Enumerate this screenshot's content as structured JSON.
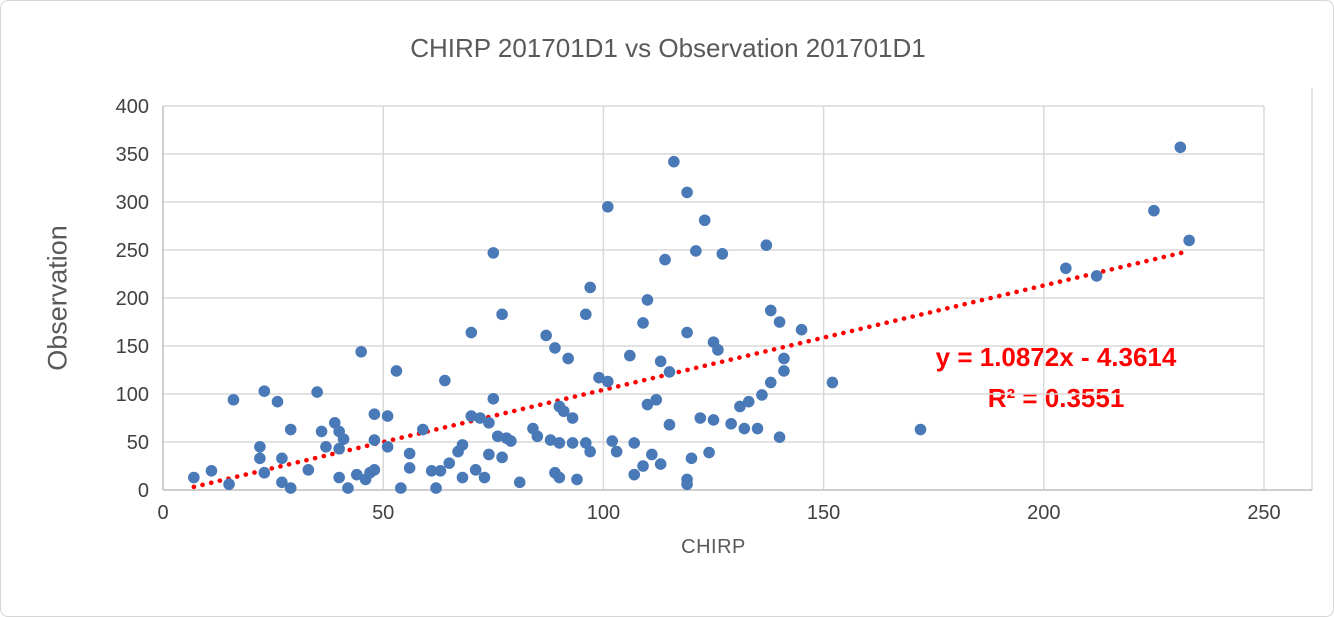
{
  "chart": {
    "title": "CHIRP 201701D1 vs Observation 201701D1",
    "x_axis_label": "CHIRP",
    "y_axis_label": "Observation",
    "equation_line1": "y = 1.0872x - 4.3614",
    "equation_line2": "R² = 0.3551"
  },
  "colors": {
    "marker": "#4979b7",
    "trendline": "#ff0000",
    "equation_text": "#ff0000",
    "gridline": "#d9d9d9",
    "axis_line": "#bfbfbf",
    "title_text": "#595959",
    "tick_text": "#404040"
  },
  "chart_data": {
    "type": "scatter",
    "title": "CHIRP 201701D1 vs Observation 201701D1",
    "xlabel": "CHIRP",
    "ylabel": "Observation",
    "xlim": [
      0,
      250
    ],
    "ylim": [
      0,
      400
    ],
    "x_ticks": [
      0,
      50,
      100,
      150,
      200,
      250
    ],
    "y_ticks": [
      0,
      50,
      100,
      150,
      200,
      250,
      300,
      350,
      400
    ],
    "grid": true,
    "legend": false,
    "points": [
      [
        7,
        13
      ],
      [
        11,
        20
      ],
      [
        15,
        6
      ],
      [
        16,
        94
      ],
      [
        22,
        45
      ],
      [
        22,
        33
      ],
      [
        23,
        18
      ],
      [
        23,
        103
      ],
      [
        26,
        92
      ],
      [
        27,
        33
      ],
      [
        27,
        8
      ],
      [
        29,
        63
      ],
      [
        29,
        2
      ],
      [
        33,
        21
      ],
      [
        35,
        102
      ],
      [
        36,
        61
      ],
      [
        37,
        45
      ],
      [
        39,
        70
      ],
      [
        40,
        61
      ],
      [
        41,
        53
      ],
      [
        40,
        43
      ],
      [
        40,
        13
      ],
      [
        42,
        2
      ],
      [
        44,
        16
      ],
      [
        45,
        144
      ],
      [
        46,
        11
      ],
      [
        47,
        18
      ],
      [
        48,
        21
      ],
      [
        48,
        52
      ],
      [
        48,
        79
      ],
      [
        51,
        77
      ],
      [
        51,
        45
      ],
      [
        53,
        124
      ],
      [
        54,
        2
      ],
      [
        56,
        38
      ],
      [
        56,
        23
      ],
      [
        59,
        63
      ],
      [
        61,
        20
      ],
      [
        62,
        2
      ],
      [
        63,
        20
      ],
      [
        64,
        114
      ],
      [
        65,
        28
      ],
      [
        67,
        40
      ],
      [
        68,
        13
      ],
      [
        68,
        47
      ],
      [
        70,
        164
      ],
      [
        70,
        77
      ],
      [
        71,
        21
      ],
      [
        72,
        75
      ],
      [
        73,
        13
      ],
      [
        74,
        70
      ],
      [
        74,
        37
      ],
      [
        75,
        247
      ],
      [
        75,
        95
      ],
      [
        76,
        56
      ],
      [
        77,
        183
      ],
      [
        77,
        34
      ],
      [
        78,
        54
      ],
      [
        79,
        51
      ],
      [
        81,
        8
      ],
      [
        84,
        64
      ],
      [
        85,
        56
      ],
      [
        87,
        161
      ],
      [
        88,
        52
      ],
      [
        89,
        148
      ],
      [
        89,
        18
      ],
      [
        90,
        87
      ],
      [
        90,
        49
      ],
      [
        90,
        13
      ],
      [
        91,
        82
      ],
      [
        92,
        137
      ],
      [
        93,
        75
      ],
      [
        93,
        49
      ],
      [
        94,
        11
      ],
      [
        96,
        183
      ],
      [
        96,
        49
      ],
      [
        97,
        211
      ],
      [
        97,
        40
      ],
      [
        99,
        117
      ],
      [
        101,
        295
      ],
      [
        101,
        113
      ],
      [
        102,
        51
      ],
      [
        103,
        40
      ],
      [
        106,
        140
      ],
      [
        107,
        49
      ],
      [
        107,
        16
      ],
      [
        109,
        174
      ],
      [
        109,
        25
      ],
      [
        110,
        198
      ],
      [
        110,
        89
      ],
      [
        111,
        37
      ],
      [
        112,
        94
      ],
      [
        113,
        134
      ],
      [
        113,
        27
      ],
      [
        114,
        240
      ],
      [
        115,
        123
      ],
      [
        115,
        68
      ],
      [
        116,
        342
      ],
      [
        119,
        310
      ],
      [
        119,
        164
      ],
      [
        119,
        11
      ],
      [
        119,
        6
      ],
      [
        120,
        33
      ],
      [
        121,
        249
      ],
      [
        122,
        75
      ],
      [
        123,
        281
      ],
      [
        124,
        39
      ],
      [
        125,
        154
      ],
      [
        125,
        73
      ],
      [
        126,
        146
      ],
      [
        127,
        246
      ],
      [
        129,
        69
      ],
      [
        131,
        87
      ],
      [
        132,
        64
      ],
      [
        133,
        92
      ],
      [
        135,
        64
      ],
      [
        136,
        99
      ],
      [
        137,
        255
      ],
      [
        138,
        187
      ],
      [
        138,
        112
      ],
      [
        140,
        175
      ],
      [
        140,
        55
      ],
      [
        141,
        137
      ],
      [
        141,
        124
      ],
      [
        145,
        167
      ],
      [
        152,
        112
      ],
      [
        172,
        63
      ],
      [
        205,
        231
      ],
      [
        212,
        223
      ],
      [
        225,
        291
      ],
      [
        231,
        357
      ],
      [
        233,
        260
      ]
    ],
    "trendline": {
      "type": "linear",
      "slope": 1.0872,
      "intercept": -4.3614,
      "r_squared": 0.3551,
      "equation_label": "y = 1.0872x - 4.3614",
      "r_squared_label": "R² = 0.3551",
      "style": "dotted",
      "x_range": [
        7,
        232
      ]
    }
  }
}
